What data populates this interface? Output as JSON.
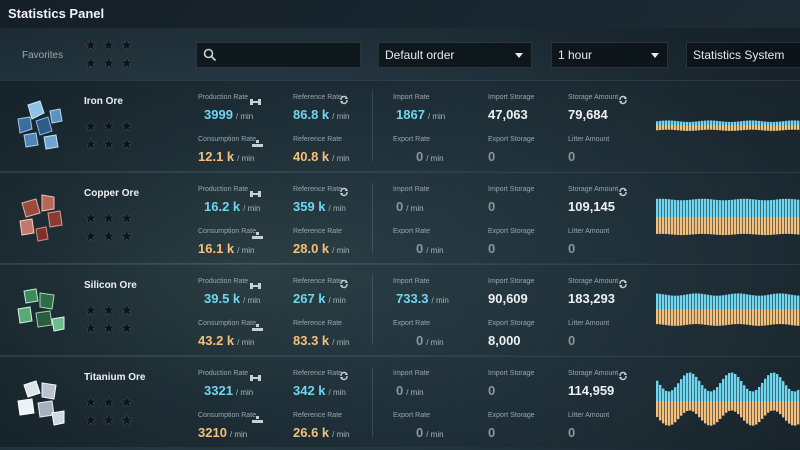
{
  "title": "Statistics Panel",
  "toolbar": {
    "favorites_label": "Favorites",
    "search_placeholder": "",
    "sort_value": "Default order",
    "period_value": "1 hour",
    "scope_value": "Statistics System"
  },
  "labels": {
    "production_rate": "Production Rate",
    "consumption_rate": "Consumption Rate",
    "reference_rate": "Reference Rate",
    "import_rate": "Import Rate",
    "export_rate": "Export Rate",
    "import_storage": "Import Storage",
    "export_storage": "Export Storage",
    "storage_amount": "Storage Amount",
    "litter_amount": "Litter Amount",
    "unit": "/ min"
  },
  "colors": {
    "production": "#6fd6f0",
    "consumption": "#f4c07a"
  },
  "items": [
    {
      "name": "Iron Ore",
      "icon": "iron-ore-icon",
      "production": "3999",
      "production_ref": "86.8 k",
      "consumption": "12.1 k",
      "consumption_ref": "40.8 k",
      "import_rate": "1867",
      "export_rate": "0",
      "import_storage": "47,063",
      "export_storage": "0",
      "storage_amount": "79,684",
      "litter_amount": "0",
      "chart": {
        "prod_level": 0.1,
        "cons_level": 0.14,
        "variation": 0.02
      }
    },
    {
      "name": "Copper Ore",
      "icon": "copper-ore-icon",
      "production": "16.2 k",
      "production_ref": "359 k",
      "consumption": "16.1 k",
      "consumption_ref": "28.0 k",
      "import_rate": "0",
      "export_rate": "0",
      "import_storage": "0",
      "export_storage": "0",
      "storage_amount": "109,145",
      "litter_amount": "0",
      "chart": {
        "prod_level": 0.46,
        "cons_level": 0.46,
        "variation": 0.02
      }
    },
    {
      "name": "Silicon Ore",
      "icon": "silicon-ore-icon",
      "production": "39.5 k",
      "production_ref": "267 k",
      "consumption": "43.2 k",
      "consumption_ref": "83.3 k",
      "import_rate": "733.3",
      "export_rate": "0",
      "import_storage": "90,609",
      "export_storage": "8,000",
      "storage_amount": "183,293",
      "litter_amount": "0",
      "chart": {
        "prod_level": 0.38,
        "cons_level": 0.42,
        "variation": 0.03
      }
    },
    {
      "name": "Titanium Ore",
      "icon": "titanium-ore-icon",
      "production": "3321",
      "production_ref": "342 k",
      "consumption": "3210",
      "consumption_ref": "26.6 k",
      "import_rate": "0",
      "export_rate": "0",
      "import_storage": "0",
      "export_storage": "0",
      "storage_amount": "114,959",
      "litter_amount": "0",
      "chart": {
        "prod_level": 0.5,
        "cons_level": 0.45,
        "variation": 0.25
      }
    }
  ]
}
